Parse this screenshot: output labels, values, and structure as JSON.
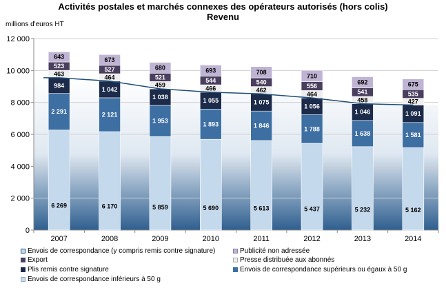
{
  "chart_data": {
    "type": "bar",
    "stacked": true,
    "title": "Activités postales et marchés connexes des opérateurs autorisés (hors colis)",
    "subtitle": "Revenu",
    "ylabel": "millions d'euros HT",
    "ylim": [
      0,
      12000
    ],
    "yticks": [
      "0",
      "2 000",
      "4 000",
      "6 000",
      "8 000",
      "10 000",
      "12 000"
    ],
    "yticks_values": [
      0,
      2000,
      4000,
      6000,
      8000,
      10000,
      12000
    ],
    "grid": true,
    "legend_position": "bottom",
    "categories": [
      "2007",
      "2008",
      "2009",
      "2010",
      "2011",
      "2012",
      "2013",
      "2014"
    ],
    "line_series": {
      "name": "Envois de correspondance (y compris remis contre signature)",
      "values": [
        9544,
        9333,
        8850,
        8638,
        8534,
        8281,
        7916,
        7834
      ],
      "color": "#1f4e79"
    },
    "series": [
      {
        "name": "Envois de correspondance inférieurs à 50 g",
        "values": [
          6269,
          6170,
          5859,
          5690,
          5613,
          5437,
          5232,
          5162
        ],
        "labels": [
          "6 269",
          "6 170",
          "5 859",
          "5 690",
          "5 613",
          "5 437",
          "5 232",
          "5 162"
        ],
        "color": "#c5d9ec",
        "label_color": "#000000"
      },
      {
        "name": "Envois de correspondance supérieurs ou égaux à 50 g",
        "values": [
          2291,
          2121,
          1953,
          1893,
          1846,
          1788,
          1638,
          1581
        ],
        "labels": [
          "2 291",
          "2 121",
          "1 953",
          "1 893",
          "1 846",
          "1 788",
          "1 638",
          "1 581"
        ],
        "color": "#3d6fa3",
        "label_color": "#ffffff"
      },
      {
        "name": "Plis remis contre signature",
        "values": [
          984,
          1042,
          1038,
          1055,
          1075,
          1056,
          1046,
          1091
        ],
        "labels": [
          "984",
          "1 042",
          "1 038",
          "1 055",
          "1 075",
          "1 056",
          "1 046",
          "1 091"
        ],
        "color": "#1c2b4a",
        "label_color": "#ffffff"
      },
      {
        "name": "Presse distribuée aux abonnés",
        "values": [
          463,
          464,
          459,
          466,
          462,
          464,
          458,
          427
        ],
        "labels": [
          "463",
          "464",
          "459",
          "466",
          "462",
          "464",
          "458",
          "427"
        ],
        "color": "#eeeeee",
        "label_color": "#000000"
      },
      {
        "name": "Export",
        "values": [
          523,
          527,
          521,
          544,
          540,
          556,
          541,
          535
        ],
        "labels": [
          "523",
          "527",
          "521",
          "544",
          "540",
          "556",
          "541",
          "535"
        ],
        "color": "#4a3f5e",
        "label_color": "#ffffff"
      },
      {
        "name": "Publicité non adressée",
        "values": [
          643,
          673,
          680,
          693,
          708,
          710,
          692,
          675
        ],
        "labels": [
          "643",
          "673",
          "680",
          "693",
          "708",
          "710",
          "692",
          "675"
        ],
        "color": "#bfb4d3",
        "label_color": "#000000"
      }
    ]
  },
  "legend": [
    {
      "label": "Envois de correspondance (y compris remis contre signature)",
      "color": "#c5d9ec",
      "border": "#1f4e79"
    },
    {
      "label": "Publicité non adressée",
      "color": "#bfb4d3",
      "border": "#8a7ca6"
    },
    {
      "label": "Export",
      "color": "#4a3f5e",
      "border": "#4a3f5e"
    },
    {
      "label": "Presse distribuée aux abonnés",
      "color": "#eeeeee",
      "border": "#aaaaaa"
    },
    {
      "label": "Plis remis contre signature",
      "color": "#1c2b4a",
      "border": "#1c2b4a"
    },
    {
      "label": "Envois de correspondance supérieurs ou égaux à 50 g",
      "color": "#3d6fa3",
      "border": "#3d6fa3"
    },
    {
      "label": "Envois de correspondance inférieurs à 50 g",
      "color": "#c5d9ec",
      "border": "#8aa6c4"
    }
  ]
}
